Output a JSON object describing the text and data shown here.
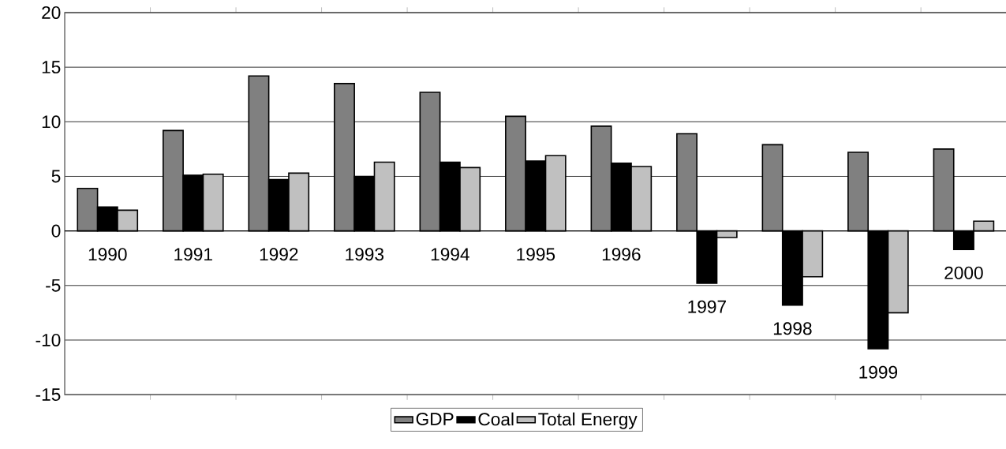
{
  "chart_data": {
    "type": "bar",
    "categories": [
      "1990",
      "1991",
      "1992",
      "1993",
      "1994",
      "1995",
      "1996",
      "1997",
      "1998",
      "1999",
      "2000"
    ],
    "series": [
      {
        "name": "GDP",
        "color": "#808080",
        "values": [
          3.9,
          9.2,
          14.2,
          13.5,
          12.7,
          10.5,
          9.6,
          8.9,
          7.9,
          7.2,
          7.5
        ]
      },
      {
        "name": "Coal",
        "color": "#000000",
        "values": [
          2.2,
          5.1,
          4.7,
          5.0,
          6.3,
          6.4,
          6.2,
          -4.8,
          -6.8,
          -10.8,
          -1.7
        ]
      },
      {
        "name": "Total Energy",
        "color": "#c0c0c0",
        "values": [
          1.9,
          5.2,
          5.3,
          6.3,
          5.8,
          6.9,
          5.9,
          -0.6,
          -4.2,
          -7.5,
          0.9
        ]
      }
    ],
    "ylim": [
      -15,
      20
    ],
    "yticks": [
      -15,
      -10,
      -5,
      0,
      5,
      10,
      15,
      20
    ],
    "grid": "y",
    "legend": "bottom"
  }
}
